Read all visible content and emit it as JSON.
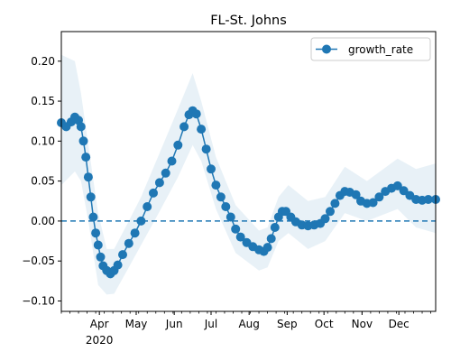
{
  "chart_data": {
    "type": "line",
    "title": "FL-St. Johns",
    "xlabel": "",
    "ylabel": "",
    "x_start": "2020-03-01",
    "x_end": "2020-12-31",
    "xlim": [
      "2020-03-01",
      "2020-12-31"
    ],
    "ylim": [
      -0.113,
      0.237
    ],
    "yticks": [
      {
        "value": -0.1,
        "label": "−0.10"
      },
      {
        "value": -0.05,
        "label": "−0.05"
      },
      {
        "value": 0.0,
        "label": "0.00"
      },
      {
        "value": 0.05,
        "label": "0.05"
      },
      {
        "value": 0.1,
        "label": "0.10"
      },
      {
        "value": 0.15,
        "label": "0.15"
      },
      {
        "value": 0.2,
        "label": "0.20"
      }
    ],
    "xticks": [
      {
        "date": "2020-04-01",
        "label": "Apr",
        "sublabel": "2020"
      },
      {
        "date": "2020-05-01",
        "label": "May"
      },
      {
        "date": "2020-06-01",
        "label": "Jun"
      },
      {
        "date": "2020-07-01",
        "label": "Jul"
      },
      {
        "date": "2020-08-01",
        "label": "Aug"
      },
      {
        "date": "2020-09-01",
        "label": "Sep"
      },
      {
        "date": "2020-10-01",
        "label": "Oct"
      },
      {
        "date": "2020-11-01",
        "label": "Nov"
      },
      {
        "date": "2020-12-01",
        "label": "Dec"
      }
    ],
    "grid": false,
    "legend_position": "top-right",
    "series": [
      {
        "name": "growth_rate",
        "color": "#1f77b4",
        "marker": "circle",
        "points": [
          [
            "2020-03-01",
            0.123
          ],
          [
            "2020-03-05",
            0.118
          ],
          [
            "2020-03-09",
            0.124
          ],
          [
            "2020-03-12",
            0.13
          ],
          [
            "2020-03-15",
            0.126
          ],
          [
            "2020-03-17",
            0.118
          ],
          [
            "2020-03-19",
            0.1
          ],
          [
            "2020-03-21",
            0.08
          ],
          [
            "2020-03-23",
            0.055
          ],
          [
            "2020-03-25",
            0.03
          ],
          [
            "2020-03-27",
            0.005
          ],
          [
            "2020-03-29",
            -0.015
          ],
          [
            "2020-03-31",
            -0.03
          ],
          [
            "2020-04-02",
            -0.045
          ],
          [
            "2020-04-04",
            -0.056
          ],
          [
            "2020-04-07",
            -0.062
          ],
          [
            "2020-04-10",
            -0.066
          ],
          [
            "2020-04-13",
            -0.062
          ],
          [
            "2020-04-16",
            -0.055
          ],
          [
            "2020-04-20",
            -0.042
          ],
          [
            "2020-04-25",
            -0.028
          ],
          [
            "2020-04-30",
            -0.015
          ],
          [
            "2020-05-05",
            0.0
          ],
          [
            "2020-05-10",
            0.018
          ],
          [
            "2020-05-15",
            0.035
          ],
          [
            "2020-05-20",
            0.048
          ],
          [
            "2020-05-25",
            0.06
          ],
          [
            "2020-05-30",
            0.075
          ],
          [
            "2020-06-04",
            0.095
          ],
          [
            "2020-06-09",
            0.118
          ],
          [
            "2020-06-13",
            0.133
          ],
          [
            "2020-06-16",
            0.138
          ],
          [
            "2020-06-19",
            0.134
          ],
          [
            "2020-06-23",
            0.115
          ],
          [
            "2020-06-27",
            0.09
          ],
          [
            "2020-07-01",
            0.065
          ],
          [
            "2020-07-05",
            0.045
          ],
          [
            "2020-07-09",
            0.03
          ],
          [
            "2020-07-13",
            0.018
          ],
          [
            "2020-07-17",
            0.005
          ],
          [
            "2020-07-21",
            -0.01
          ],
          [
            "2020-07-25",
            -0.02
          ],
          [
            "2020-07-30",
            -0.027
          ],
          [
            "2020-08-04",
            -0.032
          ],
          [
            "2020-08-09",
            -0.036
          ],
          [
            "2020-08-13",
            -0.038
          ],
          [
            "2020-08-16",
            -0.033
          ],
          [
            "2020-08-19",
            -0.022
          ],
          [
            "2020-08-22",
            -0.008
          ],
          [
            "2020-08-25",
            0.005
          ],
          [
            "2020-08-28",
            0.012
          ],
          [
            "2020-08-31",
            0.012
          ],
          [
            "2020-09-04",
            0.005
          ],
          [
            "2020-09-08",
            -0.001
          ],
          [
            "2020-09-13",
            -0.005
          ],
          [
            "2020-09-18",
            -0.006
          ],
          [
            "2020-09-23",
            -0.005
          ],
          [
            "2020-09-28",
            -0.003
          ],
          [
            "2020-10-02",
            0.003
          ],
          [
            "2020-10-06",
            0.012
          ],
          [
            "2020-10-10",
            0.022
          ],
          [
            "2020-10-14",
            0.032
          ],
          [
            "2020-10-18",
            0.037
          ],
          [
            "2020-10-22",
            0.036
          ],
          [
            "2020-10-27",
            0.033
          ],
          [
            "2020-10-31",
            0.025
          ],
          [
            "2020-11-05",
            0.022
          ],
          [
            "2020-11-10",
            0.023
          ],
          [
            "2020-11-15",
            0.03
          ],
          [
            "2020-11-20",
            0.037
          ],
          [
            "2020-11-25",
            0.041
          ],
          [
            "2020-11-30",
            0.044
          ],
          [
            "2020-12-05",
            0.038
          ],
          [
            "2020-12-10",
            0.032
          ],
          [
            "2020-12-15",
            0.027
          ],
          [
            "2020-12-20",
            0.026
          ],
          [
            "2020-12-25",
            0.027
          ],
          [
            "2020-12-31",
            0.027
          ]
        ]
      }
    ],
    "confidence_band": {
      "color": "#1f77b4",
      "opacity": 0.1,
      "points": [
        [
          "2020-03-01",
          0.045,
          0.208
        ],
        [
          "2020-03-12",
          0.062,
          0.2
        ],
        [
          "2020-03-17",
          0.05,
          0.16
        ],
        [
          "2020-03-23",
          0.0,
          0.095
        ],
        [
          "2020-03-31",
          -0.08,
          0.01
        ],
        [
          "2020-04-07",
          -0.092,
          -0.035
        ],
        [
          "2020-04-13",
          -0.091,
          -0.035
        ],
        [
          "2020-04-25",
          -0.058,
          0.0
        ],
        [
          "2020-05-05",
          -0.03,
          0.03
        ],
        [
          "2020-05-20",
          0.012,
          0.085
        ],
        [
          "2020-06-04",
          0.055,
          0.14
        ],
        [
          "2020-06-16",
          0.095,
          0.185
        ],
        [
          "2020-06-23",
          0.075,
          0.15
        ],
        [
          "2020-07-05",
          0.015,
          0.08
        ],
        [
          "2020-07-21",
          -0.04,
          0.02
        ],
        [
          "2020-08-09",
          -0.062,
          -0.012
        ],
        [
          "2020-08-16",
          -0.058,
          -0.008
        ],
        [
          "2020-08-25",
          -0.025,
          0.03
        ],
        [
          "2020-09-02",
          -0.015,
          0.045
        ],
        [
          "2020-09-18",
          -0.035,
          0.025
        ],
        [
          "2020-10-02",
          -0.025,
          0.03
        ],
        [
          "2020-10-18",
          0.01,
          0.068
        ],
        [
          "2020-11-05",
          0.0,
          0.05
        ],
        [
          "2020-11-30",
          0.015,
          0.078
        ],
        [
          "2020-12-15",
          -0.008,
          0.065
        ],
        [
          "2020-12-31",
          -0.015,
          0.072
        ]
      ]
    },
    "reference_line": {
      "y": 0.0,
      "style": "dashed",
      "color": "#1f77b4"
    }
  }
}
